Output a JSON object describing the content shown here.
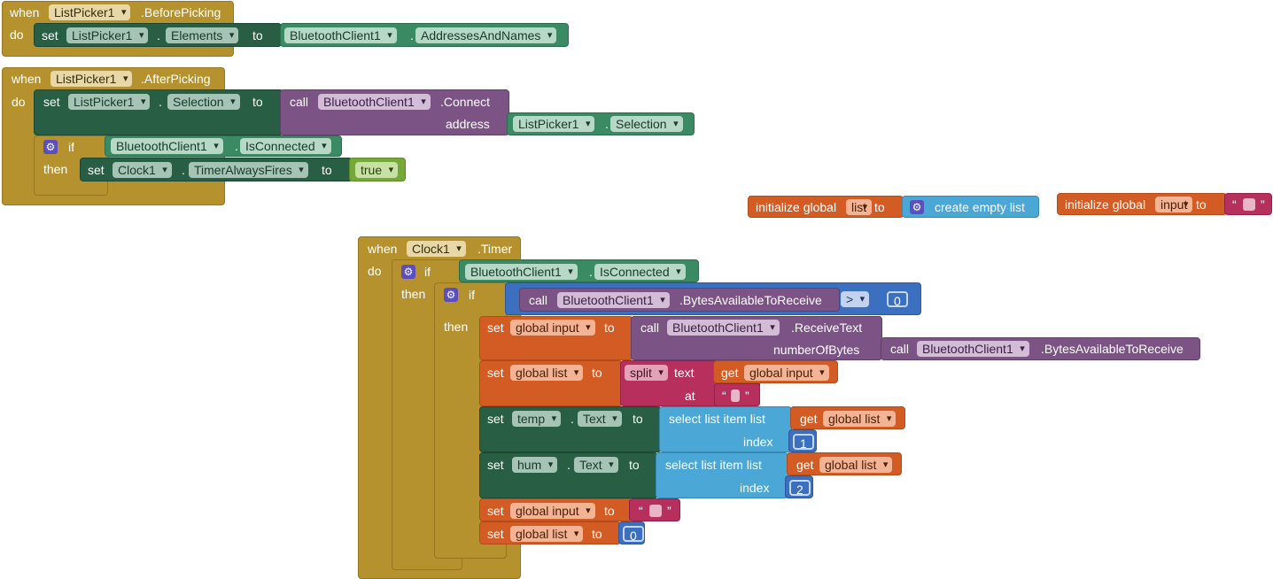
{
  "before_picking": {
    "when": "when",
    "component": "ListPicker1",
    "event": ".BeforePicking",
    "do": "do",
    "set": "set",
    "target": "ListPicker1",
    "dot": ".",
    "property": "Elements",
    "to": "to",
    "source_component": "BluetoothClient1",
    "source_property": "AddressesAndNames"
  },
  "after_picking": {
    "when": "when",
    "component": "ListPicker1",
    "event": ".AfterPicking",
    "do": "do",
    "set": "set",
    "target": "ListPicker1",
    "dot": ".",
    "property": "Selection",
    "to": "to",
    "call": "call",
    "call_component": "BluetoothClient1",
    "method": ".Connect",
    "address_label": "address",
    "addr_component": "ListPicker1",
    "addr_property": "Selection",
    "if": "if",
    "if_component": "BluetoothClient1",
    "if_property": "IsConnected",
    "then": "then",
    "then_set": "set",
    "then_component": "Clock1",
    "then_property": "TimerAlwaysFires",
    "then_to": "to",
    "then_value": "true"
  },
  "init_list": {
    "label": "initialize global",
    "name": "list",
    "to": "to",
    "value": "create empty list"
  },
  "init_input": {
    "label": "initialize global",
    "name": "input",
    "to": "to",
    "open_quote": "“",
    "close_quote": "”"
  },
  "timer": {
    "when": "when",
    "component": "Clock1",
    "event": ".Timer",
    "do": "do",
    "if1": "if",
    "if1_component": "BluetoothClient1",
    "if1_property": "IsConnected",
    "then1": "then",
    "if2": "if",
    "call": "call",
    "call_component": "BluetoothClient1",
    "call_method": ".BytesAvailableToReceive",
    "op": ">",
    "compare_value": "0",
    "then2": "then",
    "s1_set": "set",
    "s1_var": "global input",
    "s1_to": "to",
    "s1_call": "call",
    "s1_component": "BluetoothClient1",
    "s1_method": ".ReceiveText",
    "s1_param": "numberOfBytes",
    "s1_inner_call": "call",
    "s1_inner_component": "BluetoothClient1",
    "s1_inner_method": ".BytesAvailableToReceive",
    "s2_set": "set",
    "s2_var": "global list",
    "s2_to": "to",
    "s2_split": "split",
    "s2_text": "text",
    "s2_get": "get",
    "s2_get_var": "global input",
    "s2_at": "at",
    "s2_open_quote": "“",
    "s2_close_quote": "”",
    "s3_set": "set",
    "s3_component": "temp",
    "s3_dot": ".",
    "s3_property": "Text",
    "s3_to": "to",
    "s3_select": "select list item  list",
    "s3_get": "get",
    "s3_get_var": "global list",
    "s3_index": "index",
    "s3_index_value": "1",
    "s4_set": "set",
    "s4_component": "hum",
    "s4_dot": ".",
    "s4_property": "Text",
    "s4_to": "to",
    "s4_select": "select list item  list",
    "s4_get": "get",
    "s4_get_var": "global list",
    "s4_index": "index",
    "s4_index_value": "2",
    "s5_set": "set",
    "s5_var": "global input",
    "s5_to": "to",
    "s5_open_quote": "“",
    "s5_close_quote": "”",
    "s6_set": "set",
    "s6_var": "global list",
    "s6_to": "to",
    "s6_value": "0"
  },
  "colors": {
    "control": "#b5922d",
    "component": "#285e44",
    "component_getter": "#3a8a64",
    "method": "#7c5385",
    "variable": "#d35c25",
    "list": "#4aa7d6",
    "text": "#b72f5c",
    "math": "#3b6fc0",
    "logic": "#76a838"
  },
  "icons": {
    "mutator": "gear-icon",
    "dropdown": "chevron-down-icon"
  }
}
